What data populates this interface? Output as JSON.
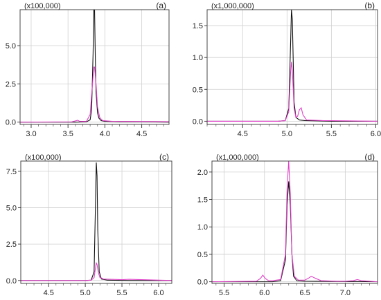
{
  "chart_data": [
    {
      "type": "line",
      "panel_label": "(a)",
      "scale_label": "(x100,000)",
      "xlim": [
        2.85,
        4.87
      ],
      "ylim": [
        -0.15,
        7.35
      ],
      "xticks": [
        3.0,
        3.5,
        4.0,
        4.5
      ],
      "xtick_labels": [
        "3.0",
        "3.5",
        "4.0",
        "4.5"
      ],
      "yticks": [
        0.0,
        2.5,
        5.0
      ],
      "ytick_labels": [
        "0.0",
        "2.5",
        "5.0"
      ],
      "series": [
        {
          "color": "#111111",
          "x": [
            2.85,
            3.6,
            3.75,
            3.8,
            3.82,
            3.84,
            3.85,
            3.86,
            3.87,
            3.88,
            3.9,
            3.92,
            3.95,
            4.0,
            4.2,
            4.5,
            4.87
          ],
          "y": [
            0.0,
            0.0,
            0.02,
            0.15,
            0.8,
            4.5,
            7.35,
            7.35,
            4.3,
            2.0,
            0.6,
            0.25,
            0.1,
            0.05,
            0.02,
            0.02,
            0.0
          ]
        },
        {
          "color": "#e040c8",
          "x": [
            2.85,
            3.55,
            3.6,
            3.63,
            3.66,
            3.75,
            3.8,
            3.83,
            3.85,
            3.86,
            3.88,
            3.9,
            3.93,
            3.97,
            4.1,
            4.6,
            4.87
          ],
          "y": [
            0.0,
            0.02,
            0.08,
            0.12,
            0.05,
            0.05,
            0.5,
            2.4,
            3.6,
            3.6,
            2.5,
            1.0,
            0.3,
            0.1,
            0.05,
            0.04,
            0.03
          ]
        }
      ]
    },
    {
      "type": "line",
      "panel_label": "(b)",
      "scale_label": "(x1,000,000)",
      "xlim": [
        4.1,
        6.02
      ],
      "ylim": [
        -0.05,
        1.75
      ],
      "xticks": [
        4.5,
        5.0,
        5.5,
        6.0
      ],
      "xtick_labels": [
        "4.5",
        "5.0",
        "5.5",
        "6.0"
      ],
      "yticks": [
        0.0,
        0.5,
        1.0,
        1.5
      ],
      "ytick_labels": [
        "0.0",
        "0.5",
        "1.0",
        "1.5"
      ],
      "series": [
        {
          "color": "#111111",
          "x": [
            4.1,
            4.9,
            4.98,
            5.02,
            5.04,
            5.05,
            5.06,
            5.08,
            5.1,
            5.14,
            5.2,
            5.5,
            6.02
          ],
          "y": [
            0.0,
            0.0,
            0.01,
            0.2,
            1.2,
            1.75,
            1.6,
            0.3,
            0.06,
            0.02,
            0.01,
            0.0,
            0.0
          ]
        },
        {
          "color": "#e040c8",
          "x": [
            4.1,
            4.9,
            4.98,
            5.02,
            5.04,
            5.05,
            5.06,
            5.08,
            5.1,
            5.12,
            5.14,
            5.16,
            5.18,
            5.22,
            5.4,
            6.02
          ],
          "y": [
            0.0,
            0.0,
            0.01,
            0.15,
            0.75,
            0.93,
            0.8,
            0.2,
            0.06,
            0.08,
            0.18,
            0.21,
            0.1,
            0.02,
            0.01,
            0.0
          ]
        }
      ]
    },
    {
      "type": "line",
      "panel_label": "(c)",
      "scale_label": "(x100,000)",
      "xlim": [
        4.12,
        6.18
      ],
      "ylim": [
        -0.2,
        8.2
      ],
      "xticks": [
        4.5,
        5.0,
        5.5,
        6.0
      ],
      "xtick_labels": [
        "4.5",
        "5.0",
        "5.5",
        "6.0"
      ],
      "yticks": [
        0.0,
        2.5,
        5.0,
        7.5
      ],
      "ytick_labels": [
        "0.0",
        "2.5",
        "5.0",
        "7.5"
      ],
      "series": [
        {
          "color": "#111111",
          "x": [
            4.12,
            5.0,
            5.08,
            5.12,
            5.14,
            5.15,
            5.16,
            5.17,
            5.19,
            5.22,
            5.3,
            5.6,
            6.18
          ],
          "y": [
            0.0,
            0.0,
            0.02,
            0.6,
            5.5,
            8.1,
            7.2,
            3.5,
            0.6,
            0.1,
            0.02,
            0.0,
            0.0
          ]
        },
        {
          "color": "#e040c8",
          "x": [
            4.12,
            5.0,
            5.08,
            5.12,
            5.14,
            5.15,
            5.16,
            5.18,
            5.2,
            5.25,
            5.35,
            5.5,
            5.6,
            6.18
          ],
          "y": [
            0.0,
            0.0,
            0.02,
            0.2,
            0.9,
            1.2,
            1.1,
            0.5,
            0.2,
            0.1,
            0.08,
            0.06,
            0.08,
            0.0
          ]
        }
      ]
    },
    {
      "type": "line",
      "panel_label": "(d)",
      "scale_label": "(x1,000,000)",
      "xlim": [
        5.35,
        7.4
      ],
      "ylim": [
        -0.03,
        2.2
      ],
      "xticks": [
        5.5,
        6.0,
        6.5,
        7.0
      ],
      "xtick_labels": [
        "5.5",
        "6.0",
        "6.5",
        "7.0"
      ],
      "yticks": [
        0.0,
        0.5,
        1.0,
        1.5,
        2.0
      ],
      "ytick_labels": [
        "0.0",
        "0.5",
        "1.0",
        "1.5",
        "2.0"
      ],
      "series": [
        {
          "color": "#111111",
          "x": [
            5.35,
            6.1,
            6.2,
            6.26,
            6.28,
            6.3,
            6.32,
            6.34,
            6.36,
            6.4,
            6.5,
            7.4
          ],
          "y": [
            0.0,
            0.0,
            0.02,
            0.4,
            1.4,
            1.83,
            1.4,
            0.5,
            0.1,
            0.02,
            0.01,
            0.0
          ]
        },
        {
          "color": "#e040c8",
          "x": [
            5.35,
            5.9,
            5.95,
            5.98,
            6.01,
            6.05,
            6.1,
            6.2,
            6.26,
            6.28,
            6.3,
            6.32,
            6.34,
            6.37,
            6.42,
            6.5,
            6.55,
            6.58,
            6.62,
            6.7,
            6.9,
            7.0,
            7.1,
            7.15,
            7.2,
            7.3,
            7.4
          ],
          "y": [
            0.0,
            0.01,
            0.06,
            0.12,
            0.06,
            0.02,
            0.02,
            0.04,
            0.5,
            1.7,
            2.2,
            1.6,
            0.5,
            0.1,
            0.03,
            0.03,
            0.07,
            0.1,
            0.07,
            0.02,
            0.01,
            0.01,
            0.02,
            0.04,
            0.02,
            0.01,
            0.0
          ]
        }
      ]
    }
  ]
}
